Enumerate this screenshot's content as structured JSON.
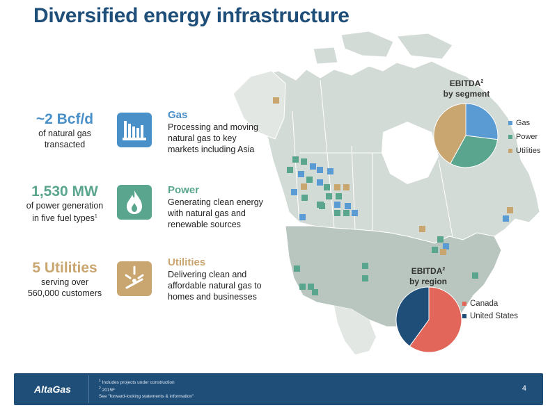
{
  "title": "Diversified energy infrastructure",
  "colors": {
    "navy": "#1f4e79",
    "gas": "#5a9bd4",
    "power": "#5aa58e",
    "utilities": "#c9a56f",
    "canada": "#e2675a",
    "us": "#1f4e79"
  },
  "stats": [
    {
      "value": "~2 Bcf/d",
      "line1": "of natural gas",
      "line2": "transacted",
      "color": "#4a90c8"
    },
    {
      "value": "1,530 MW",
      "line1": "of power generation",
      "line2": "in five fuel types",
      "footnote": "1",
      "color": "#5aa58e"
    },
    {
      "value": "5 Utilities",
      "line1": "serving over",
      "line2": "560,000 customers",
      "color": "#c9a56f"
    }
  ],
  "segments": [
    {
      "heading": "Gas",
      "lines": [
        "Processing and moving",
        "natural gas to key",
        "markets including Asia"
      ],
      "icon": "gas-processing-icon",
      "color": "#4a90c8"
    },
    {
      "heading": "Power",
      "lines": [
        "Generating clean energy",
        "with natural gas and",
        "renewable sources"
      ],
      "icon": "flame-icon",
      "color": "#5aa58e"
    },
    {
      "heading": "Utilities",
      "lines": [
        "Delivering clean and",
        "affordable natural gas to",
        "homes and businesses"
      ],
      "icon": "gas-burner-icon",
      "color": "#c9a56f"
    }
  ],
  "chart_data": [
    {
      "type": "pie",
      "title": "EBITDA",
      "title_sup": "2",
      "title_line2": "by segment",
      "categories": [
        "Gas",
        "Power",
        "Utilities"
      ],
      "values": [
        27,
        31,
        42
      ],
      "colors": [
        "#5a9bd4",
        "#5aa58e",
        "#c9a56f"
      ],
      "legend": "right"
    },
    {
      "type": "pie",
      "title": "EBITDA",
      "title_sup": "2",
      "title_line2": "by region",
      "categories": [
        "Canada",
        "United States"
      ],
      "values": [
        60,
        40
      ],
      "colors": [
        "#e2675a",
        "#1f4e79"
      ],
      "legend": "right"
    }
  ],
  "footer": {
    "logo": "AltaGas",
    "note1_sup": "1",
    "note1": "Includes projects under construction",
    "note2_sup": "2",
    "note2": "2015F",
    "note3": "See \"forward-looking statements & information\"",
    "page": "4"
  }
}
